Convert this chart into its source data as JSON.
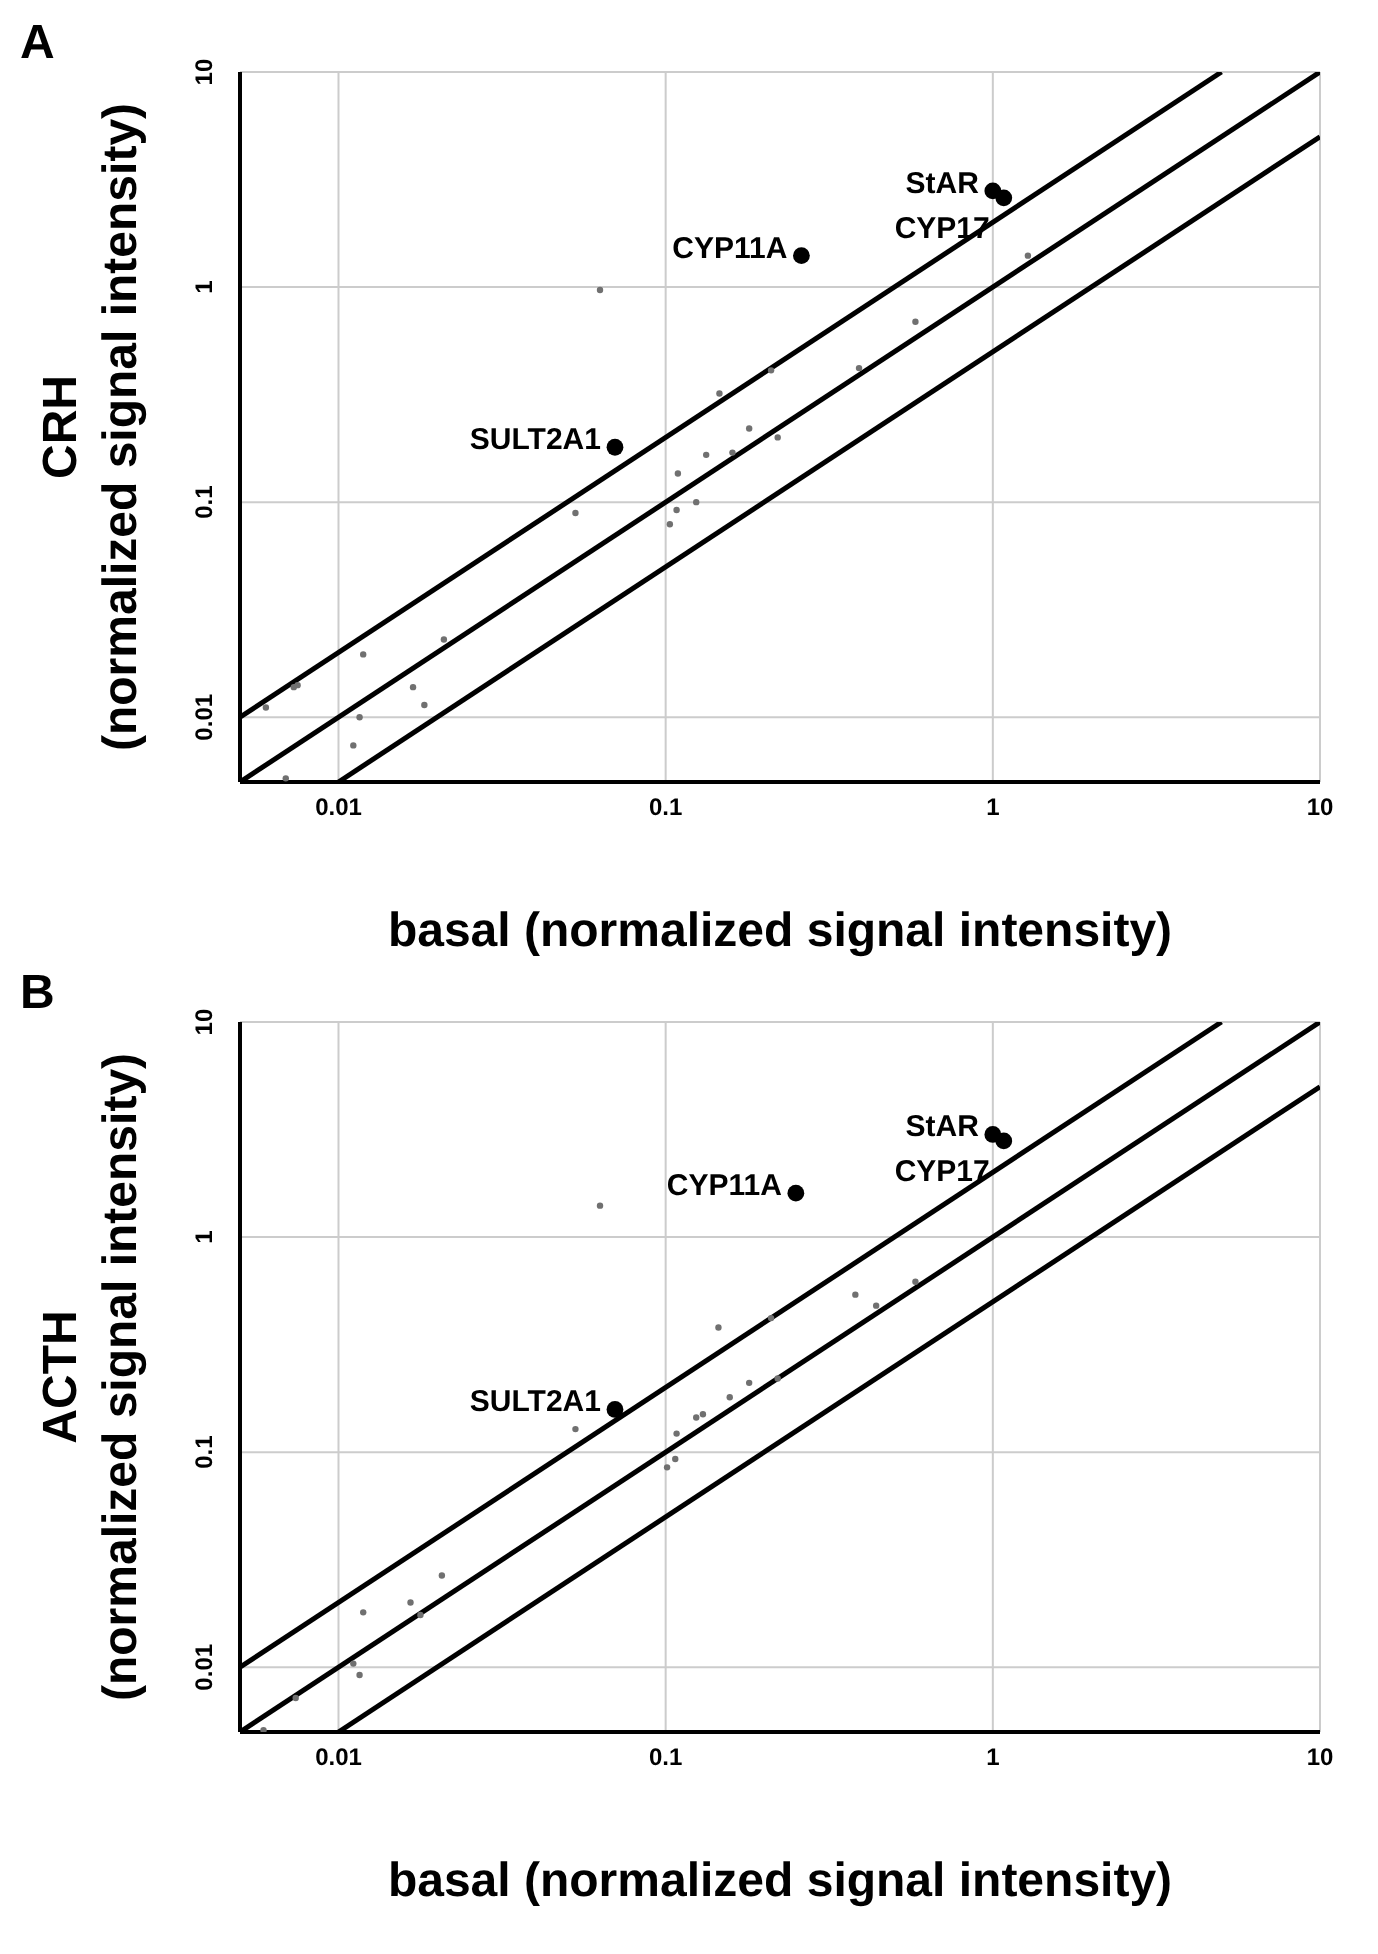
{
  "chart_data": [
    {
      "type": "scatter",
      "title": "A",
      "xlabel": "basal (normalized signal intensity)",
      "ylabel": "CRH (normalized signal intensity)",
      "log": "xy",
      "grid": true,
      "marker": "circle",
      "xlim": [
        0.005,
        10
      ],
      "ylim": [
        0.005,
        10
      ],
      "xticks": [
        0.01,
        0.1,
        1,
        10
      ],
      "yticks": [
        0.01,
        0.1,
        1,
        10
      ],
      "series": [
        {
          "type": "scatter",
          "color": "#707070",
          "x": [
            0.063,
            1.28,
            0.58,
            0.39,
            0.21,
            0.146,
            0.18,
            0.22,
            0.16,
            0.133,
            0.109,
            0.124,
            0.108,
            0.103,
            0.053,
            0.021,
            0.0119,
            0.0169,
            0.0183,
            0.0116,
            0.0111,
            0.0075,
            0.0073,
            0.006,
            0.0069
          ],
          "values": [
            0.97,
            1.4,
            0.69,
            0.42,
            0.41,
            0.32,
            0.22,
            0.2,
            0.17,
            0.166,
            0.136,
            0.1,
            0.092,
            0.079,
            0.089,
            0.023,
            0.0196,
            0.0138,
            0.0114,
            0.01,
            0.0074,
            0.0141,
            0.0138,
            0.0111,
            0.0052
          ]
        },
        {
          "type": "scatter",
          "color": "#000000",
          "x": [
            1.0,
            1.08,
            0.26,
            0.07
          ],
          "values": [
            2.8,
            2.6,
            1.4,
            0.18
          ]
        },
        {
          "type": "line",
          "color": "#000000",
          "line_style": "solid",
          "marker": "none",
          "x": [
            0.005,
            10
          ],
          "values": [
            0.005,
            10
          ]
        },
        {
          "type": "line",
          "color": "#000000",
          "line_style": "solid",
          "marker": "none",
          "x": [
            0.005,
            5
          ],
          "values": [
            0.01,
            10
          ]
        },
        {
          "type": "line",
          "color": "#000000",
          "line_style": "solid",
          "marker": "none",
          "x": [
            0.01,
            10
          ],
          "values": [
            0.005,
            5
          ]
        }
      ],
      "annotations": [
        {
          "text": "StAR",
          "x": 1.0,
          "y": 2.8
        },
        {
          "text": "CYP17",
          "x": 1.08,
          "y": 2.6
        },
        {
          "text": "CYP11A",
          "x": 0.26,
          "y": 1.4
        },
        {
          "text": "SULT2A1",
          "x": 0.07,
          "y": 0.18
        }
      ]
    },
    {
      "type": "scatter",
      "title": "B",
      "xlabel": "basal (normalized signal intensity)",
      "ylabel": "ACTH (normalized signal intensity)",
      "log": "xy",
      "grid": true,
      "marker": "circle",
      "xlim": [
        0.005,
        10
      ],
      "ylim": [
        0.005,
        10
      ],
      "xticks": [
        0.01,
        0.1,
        1,
        10
      ],
      "yticks": [
        0.01,
        0.1,
        1,
        10
      ],
      "series": [
        {
          "type": "scatter",
          "color": "#707070",
          "x": [
            0.063,
            0.58,
            0.38,
            0.44,
            0.21,
            0.145,
            0.22,
            0.18,
            0.157,
            0.13,
            0.124,
            0.108,
            0.107,
            0.101,
            0.053,
            0.0207,
            0.0166,
            0.0178,
            0.0119,
            0.0111,
            0.0116,
            0.0074,
            0.0059
          ],
          "values": [
            1.4,
            0.62,
            0.54,
            0.48,
            0.42,
            0.38,
            0.22,
            0.21,
            0.18,
            0.15,
            0.145,
            0.122,
            0.093,
            0.085,
            0.128,
            0.0267,
            0.02,
            0.0175,
            0.018,
            0.0104,
            0.0092,
            0.0072,
            0.0051
          ]
        },
        {
          "type": "scatter",
          "color": "#000000",
          "x": [
            1.0,
            1.08,
            0.25,
            0.07
          ],
          "values": [
            3.0,
            2.8,
            1.6,
            0.158
          ]
        },
        {
          "type": "line",
          "color": "#000000",
          "line_style": "solid",
          "marker": "none",
          "x": [
            0.005,
            10
          ],
          "values": [
            0.005,
            10
          ]
        },
        {
          "type": "line",
          "color": "#000000",
          "line_style": "solid",
          "marker": "none",
          "x": [
            0.005,
            5
          ],
          "values": [
            0.01,
            10
          ]
        },
        {
          "type": "line",
          "color": "#000000",
          "line_style": "solid",
          "marker": "none",
          "x": [
            0.01,
            10
          ],
          "values": [
            0.005,
            5
          ]
        }
      ],
      "annotations": [
        {
          "text": "StAR",
          "x": 1.0,
          "y": 3.0
        },
        {
          "text": "CYP17",
          "x": 1.08,
          "y": 2.8
        },
        {
          "text": "CYP11A",
          "x": 0.25,
          "y": 1.6
        },
        {
          "text": "SULT2A1",
          "x": 0.07,
          "y": 0.158
        }
      ]
    }
  ]
}
